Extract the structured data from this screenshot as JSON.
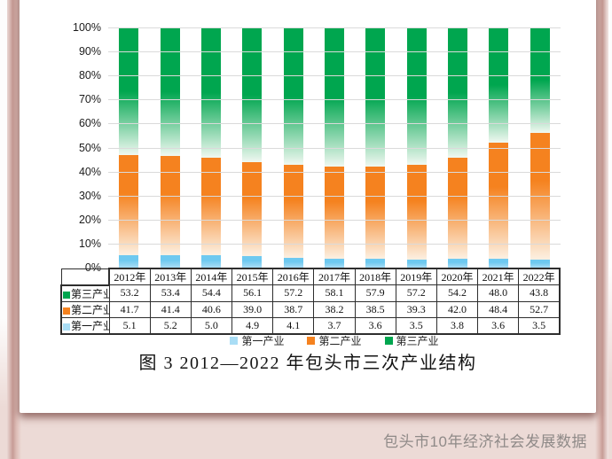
{
  "page": {
    "footer_source": "包头市10年经济社会发展数据"
  },
  "chart_data": {
    "type": "bar",
    "variant": "stacked-100",
    "title": "图 3 2012—2022 年包头市三次产业结构",
    "unit": "%",
    "grid": true,
    "legend_position": "bottom",
    "ylim": [
      0,
      100
    ],
    "y_ticks": [
      "100%",
      "90%",
      "80%",
      "70%",
      "60%",
      "50%",
      "40%",
      "30%",
      "20%",
      "10%",
      "0%"
    ],
    "categories": [
      "2012年",
      "2013年",
      "2014年",
      "2015年",
      "2016年",
      "2017年",
      "2018年",
      "2019年",
      "2020年",
      "2021年",
      "2022年"
    ],
    "series": [
      {
        "key": "tertiary",
        "name": "第三产业",
        "color": "#00A64F",
        "fade": "#F0F8F1",
        "solid_stop": 50,
        "swatch": "#00A64F",
        "values": [
          53.2,
          53.4,
          54.4,
          56.1,
          57.2,
          58.1,
          57.9,
          57.2,
          54.2,
          48.0,
          43.8
        ]
      },
      {
        "key": "secondary",
        "name": "第二产业",
        "color": "#F5821F",
        "fade": "#FCF0E2",
        "solid_stop": 38,
        "swatch": "#F5821F",
        "values": [
          41.7,
          41.4,
          40.6,
          39.0,
          38.7,
          38.2,
          38.5,
          39.3,
          42.0,
          48.4,
          52.7
        ]
      },
      {
        "key": "primary",
        "name": "第一产业",
        "color": "#6EC9F0",
        "fade": "#A9DDF5",
        "solid_stop": 40,
        "swatch": "#A9DDF5",
        "values": [
          5.1,
          5.2,
          5.0,
          4.9,
          4.1,
          3.7,
          3.6,
          3.5,
          3.8,
          3.6,
          3.5
        ]
      }
    ],
    "legend": [
      "第一产业",
      "第二产业",
      "第三产业"
    ]
  }
}
